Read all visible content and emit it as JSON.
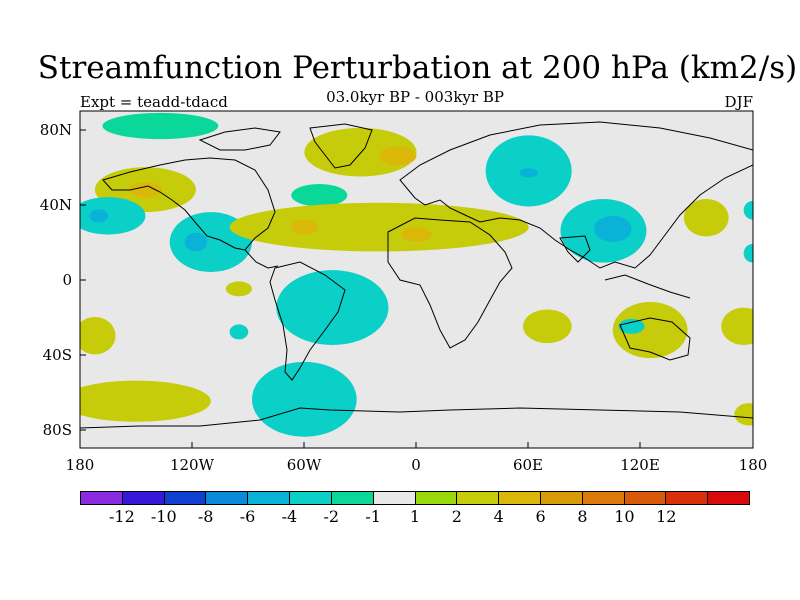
{
  "figure": {
    "title": "Streamfunction Perturbation at 200 hPa (km2/s)",
    "left_subtitle": "Expt = teadd-tdacd",
    "center_subtitle": "03.0kyr BP - 003kyr BP",
    "right_subtitle": "DJF"
  },
  "map": {
    "projection": "cylindrical equidistant",
    "lon_range": [
      -180,
      180
    ],
    "lat_range": [
      -90,
      90
    ],
    "background_color": "#e8e8e8",
    "x_ticks": [
      "180",
      "120W",
      "60W",
      "0",
      "60E",
      "120E",
      "180"
    ],
    "y_ticks": [
      "80N",
      "40N",
      "0",
      "40S",
      "80S"
    ]
  },
  "colorbar": {
    "colors": [
      "#8a2be2",
      "#3518d8",
      "#1040d0",
      "#0a8ad8",
      "#0ab2d8",
      "#0ad0c8",
      "#0ad89a",
      "#e8e8e8",
      "#99d80a",
      "#c6cc0a",
      "#d9b80a",
      "#d99a0a",
      "#d97a0a",
      "#d9580a",
      "#d9300a",
      "#d90a0a"
    ],
    "labels": [
      "-12",
      "-10",
      "-8",
      "-6",
      "-4",
      "-2",
      "-1",
      "1",
      "2",
      "4",
      "6",
      "8",
      "10",
      "12"
    ]
  },
  "chart_data": {
    "type": "heatmap",
    "title": "Streamfunction Perturbation at 200 hPa (km2/s)",
    "variable": "streamfunction perturbation",
    "units": "km2/s",
    "experiment": "teadd-tdacd",
    "period": "03.0kyr BP - 003kyr BP",
    "season": "DJF",
    "levels": [
      -12,
      -10,
      -8,
      -6,
      -4,
      -2,
      -1,
      1,
      2,
      4,
      6,
      8,
      10,
      12
    ],
    "regions": [
      {
        "lon": -137,
        "lat": 82,
        "w": 62,
        "h": 14,
        "value": -1.5
      },
      {
        "lon": -30,
        "lat": 68,
        "w": 60,
        "h": 26,
        "value": 2.5
      },
      {
        "lon": -10,
        "lat": 66,
        "w": 20,
        "h": 10,
        "value": 4.5
      },
      {
        "lon": 60,
        "lat": 58,
        "w": 46,
        "h": 38,
        "value": -2.5
      },
      {
        "lon": 60,
        "lat": 57,
        "w": 10,
        "h": 5,
        "value": -4.5
      },
      {
        "lon": -145,
        "lat": 48,
        "w": 54,
        "h": 24,
        "value": 2.5
      },
      {
        "lon": -145,
        "lat": 48,
        "w": 18,
        "h": 8,
        "value": 4.5
      },
      {
        "lon": -52,
        "lat": 45,
        "w": 30,
        "h": 12,
        "value": -1.5
      },
      {
        "lon": -165,
        "lat": 34,
        "w": 40,
        "h": 20,
        "value": -2.5
      },
      {
        "lon": -170,
        "lat": 34,
        "w": 10,
        "h": 7,
        "value": -4.5
      },
      {
        "lon": -110,
        "lat": 20,
        "w": 44,
        "h": 32,
        "value": -2.5
      },
      {
        "lon": -118,
        "lat": 20,
        "w": 12,
        "h": 10,
        "value": -4.5
      },
      {
        "lon": -20,
        "lat": 28,
        "w": 160,
        "h": 26,
        "value": 2.5
      },
      {
        "lon": -60,
        "lat": 28,
        "w": 14,
        "h": 8,
        "value": 4.5
      },
      {
        "lon": 0,
        "lat": 24,
        "w": 16,
        "h": 8,
        "value": 4.5
      },
      {
        "lon": 100,
        "lat": 26,
        "w": 46,
        "h": 34,
        "value": -2.5
      },
      {
        "lon": 105,
        "lat": 27,
        "w": 20,
        "h": 14,
        "value": -4.5
      },
      {
        "lon": 155,
        "lat": 33,
        "w": 24,
        "h": 20,
        "value": 2.5
      },
      {
        "lon": 180,
        "lat": 37,
        "w": 10,
        "h": 10,
        "value": -2.5
      },
      {
        "lon": 180,
        "lat": 14,
        "w": 10,
        "h": 10,
        "value": -2.5
      },
      {
        "lon": -95,
        "lat": -5,
        "w": 14,
        "h": 8,
        "value": 2.5
      },
      {
        "lon": -45,
        "lat": -15,
        "w": 60,
        "h": 40,
        "value": -2.5
      },
      {
        "lon": -95,
        "lat": -28,
        "w": 10,
        "h": 8,
        "value": -2.5
      },
      {
        "lon": -172,
        "lat": -30,
        "w": 22,
        "h": 20,
        "value": 2.5
      },
      {
        "lon": 70,
        "lat": -25,
        "w": 26,
        "h": 18,
        "value": 2.5
      },
      {
        "lon": 125,
        "lat": -27,
        "w": 40,
        "h": 30,
        "value": 2.5
      },
      {
        "lon": 115,
        "lat": -25,
        "w": 14,
        "h": 8,
        "value": -2.5
      },
      {
        "lon": 175,
        "lat": -25,
        "w": 24,
        "h": 20,
        "value": 2.5
      },
      {
        "lon": -60,
        "lat": -64,
        "w": 56,
        "h": 40,
        "value": -2.5
      },
      {
        "lon": -150,
        "lat": -65,
        "w": 80,
        "h": 22,
        "value": 2.5
      },
      {
        "lon": 178,
        "lat": -72,
        "w": 16,
        "h": 12,
        "value": 2.5
      }
    ]
  }
}
